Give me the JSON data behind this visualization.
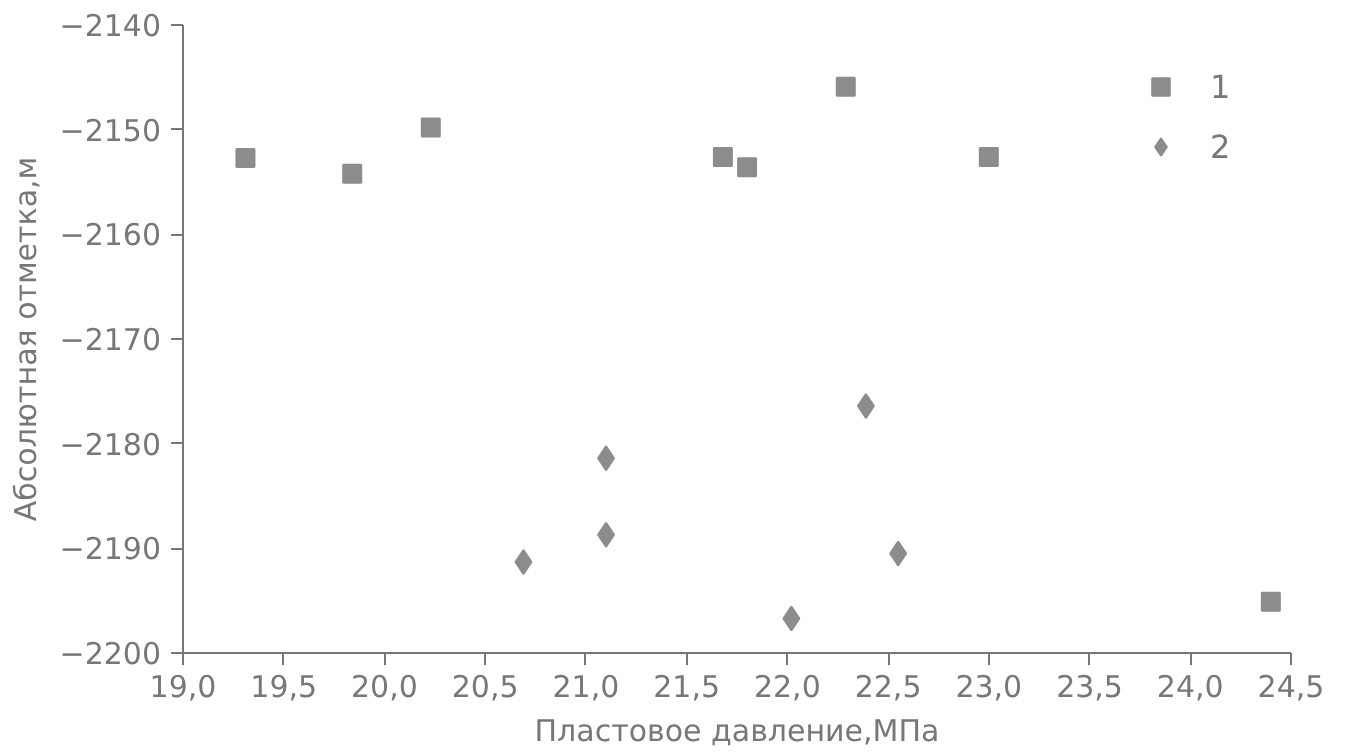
{
  "chart_data": {
    "type": "scatter",
    "xlabel": "Пластовое давление,МПа",
    "ylabel": "Абсолютная отметка,м",
    "xlim": [
      19.0,
      24.5
    ],
    "xticks": [
      {
        "value": 19.0,
        "label": "19,0"
      },
      {
        "value": 19.5,
        "label": "19,5"
      },
      {
        "value": 20.0,
        "label": "20,0"
      },
      {
        "value": 20.5,
        "label": "20,5"
      },
      {
        "value": 21.0,
        "label": "21,0"
      },
      {
        "value": 21.5,
        "label": "21,5"
      },
      {
        "value": 22.0,
        "label": "22,0"
      },
      {
        "value": 22.5,
        "label": "22,5"
      },
      {
        "value": 23.0,
        "label": "23,0"
      },
      {
        "value": 23.5,
        "label": "23,5"
      },
      {
        "value": 24.0,
        "label": "24,0"
      },
      {
        "value": 24.5,
        "label": "24,5"
      }
    ],
    "ylim": [
      -2200,
      -2140
    ],
    "yticks": [
      -2200,
      -2190,
      -2180,
      -2170,
      -2160,
      -2150,
      -2140
    ],
    "grid": false,
    "legend": "top right",
    "series": [
      {
        "name": "1",
        "color": "#8c8c8c",
        "marker": "square",
        "x": [
          19.31,
          19.84,
          20.23,
          21.68,
          21.8,
          22.29,
          23.0,
          24.4
        ],
        "values": [
          -2152.7,
          -2154.2,
          -2149.8,
          -2152.6,
          -2153.6,
          -2145.9,
          -2152.6,
          -2195.1
        ]
      },
      {
        "name": "2",
        "color": "#8c8c8c",
        "marker": "diamond",
        "x": [
          20.69,
          21.1,
          21.1,
          22.02,
          22.39,
          22.55
        ],
        "values": [
          -2191.3,
          -2181.4,
          -2188.7,
          -2196.7,
          -2176.4,
          -2190.5
        ]
      }
    ]
  }
}
